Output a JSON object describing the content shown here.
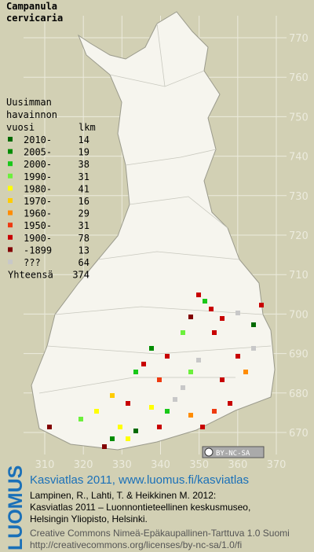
{
  "map": {
    "title": [
      "Campanula",
      "cervicaria"
    ],
    "legend": {
      "header": [
        "Uusimman",
        "havainnon",
        "vuosi"
      ],
      "count_header": "lkm",
      "rows": [
        {
          "label": "2010-",
          "count": 14,
          "color": "#006a00"
        },
        {
          "label": "2005-",
          "count": 19,
          "color": "#008c00"
        },
        {
          "label": "2000-",
          "count": 38,
          "color": "#19c819"
        },
        {
          "label": "1990-",
          "count": 31,
          "color": "#6cf03c"
        },
        {
          "label": "1980-",
          "count": 41,
          "color": "#ffff00"
        },
        {
          "label": "1970-",
          "count": 16,
          "color": "#ffcc00"
        },
        {
          "label": "1960-",
          "count": 29,
          "color": "#ff8c00"
        },
        {
          "label": "1950-",
          "count": 31,
          "color": "#ee3a10"
        },
        {
          "label": "1900-",
          "count": 78,
          "color": "#c80000"
        },
        {
          "label": "-1899",
          "count": 13,
          "color": "#820000"
        },
        {
          "label": "???",
          "count": 64,
          "color": "#c8c8c8"
        }
      ],
      "total_label": "Yhteensä",
      "total": 374
    },
    "yticks": [
      770,
      760,
      750,
      740,
      730,
      720,
      710,
      700,
      690,
      680,
      670
    ],
    "xticks": [
      310,
      320,
      330,
      340,
      350,
      360,
      370
    ],
    "license_badge": "BY-NC-SA",
    "footer": {
      "logo": "LUOMUS",
      "link": "Kasviatlas 2011, www.luomus.fi/kasviatlas",
      "citation": [
        "Lampinen, R., Lahti, T. & Heikkinen M. 2012:",
        "Kasviatlas 2011 – Luonnontieteellinen keskusmuseo,",
        "Helsingin Yliopisto, Helsinki."
      ],
      "license": [
        "Creative Commons Nimeä-Epäkaupallinen-Tarttuva 1.0 Suomi",
        "http://creativecommons.org/licenses/by-nc-sa/1.0/fi"
      ]
    }
  }
}
